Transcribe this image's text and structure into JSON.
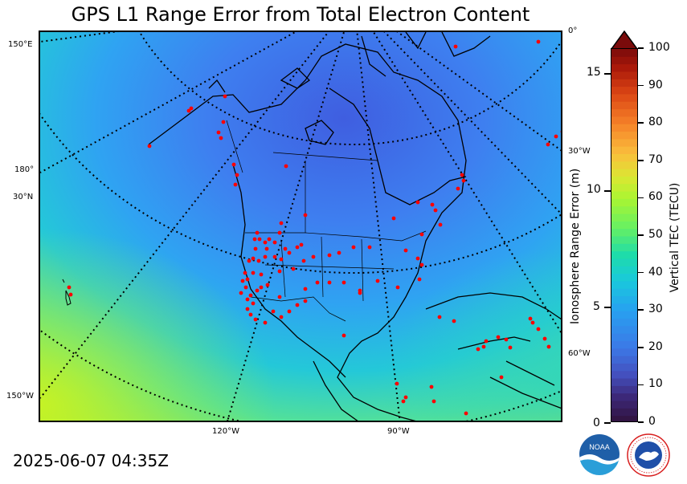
{
  "title": "GPS L1 Range Error from Total Electron Content",
  "timestamp": "2025-06-07 04:35Z",
  "map": {
    "lat_labels": [
      "150°E",
      "180°",
      "30°N",
      "150°W",
      "0°",
      "30°W",
      "60°W",
      "120°W",
      "90°W"
    ],
    "station_marker_color": "#ff0000",
    "high_tec_color": "#b6f02a",
    "low_tec_color": "#3f5ee0"
  },
  "left_axis": {
    "label": "Ionosphere Range Error (m)",
    "ticks": [
      "15",
      "10",
      "5",
      "0"
    ]
  },
  "right_axis": {
    "label": "Vertical TEC (TECU)",
    "ticks": [
      "100",
      "90",
      "80",
      "70",
      "60",
      "50",
      "40",
      "30",
      "20",
      "10",
      "0"
    ]
  },
  "colors": {
    "cbar_top_arrow": "#7a0b0b"
  },
  "logos": {
    "noaa_text": "NOAA",
    "nws_text": "NATIONAL WEATHER SERVICE"
  },
  "chart_data": {
    "type": "heatmap",
    "title": "GPS L1 Range Error from Total Electron Content",
    "colorbar_tec_range": [
      0,
      100
    ],
    "range_error_m_range": [
      0,
      16.3
    ],
    "extend": "max"
  }
}
